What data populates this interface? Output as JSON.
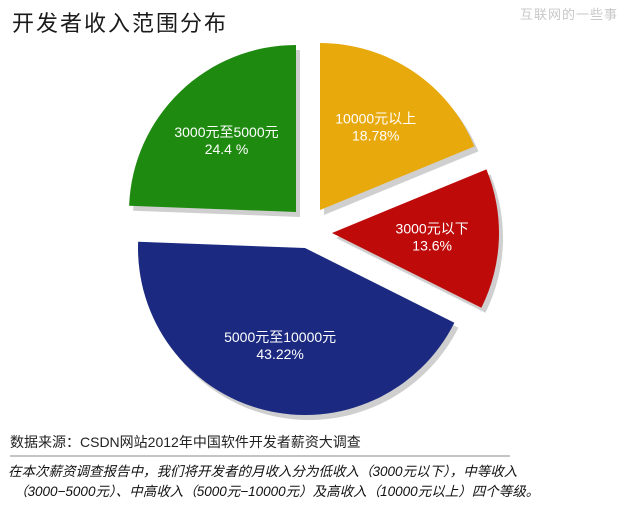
{
  "header": {
    "title": "开发者收入范围分布",
    "watermark": "互联网的一些事"
  },
  "footer": {
    "source": "数据来源：CSDN网站2012年中国软件开发者薪资大调查",
    "note_line1": "在本次薪资调查报告中，我们将开发者的月收入分为低收入（3000元以下），中等收入",
    "note_line2": "（3000−5000元）、中高收入（5000元−10000元）及高收入（10000元以上）四个等级。"
  },
  "chart_data": {
    "type": "pie",
    "title": "开发者收入范围分布",
    "subtitle": "",
    "exploded": true,
    "legend": "none (labels inside slices)",
    "slices": [
      {
        "label": "10000元以上",
        "value": 18.78,
        "value_label": "18.78%",
        "color": "#e8a90c"
      },
      {
        "label": "3000元以下",
        "value": 13.6,
        "value_label": "13.6%",
        "color": "#bf0a0a"
      },
      {
        "label": "5000元至10000元",
        "value": 43.22,
        "value_label": "43.22%",
        "color": "#1b2a80"
      },
      {
        "label": "3000元至5000元",
        "value": 24.4,
        "value_label": "24.4 %",
        "color": "#1f8a10"
      }
    ],
    "source": "数据来源：CSDN网站2012年中国软件开发者薪资大调查"
  }
}
